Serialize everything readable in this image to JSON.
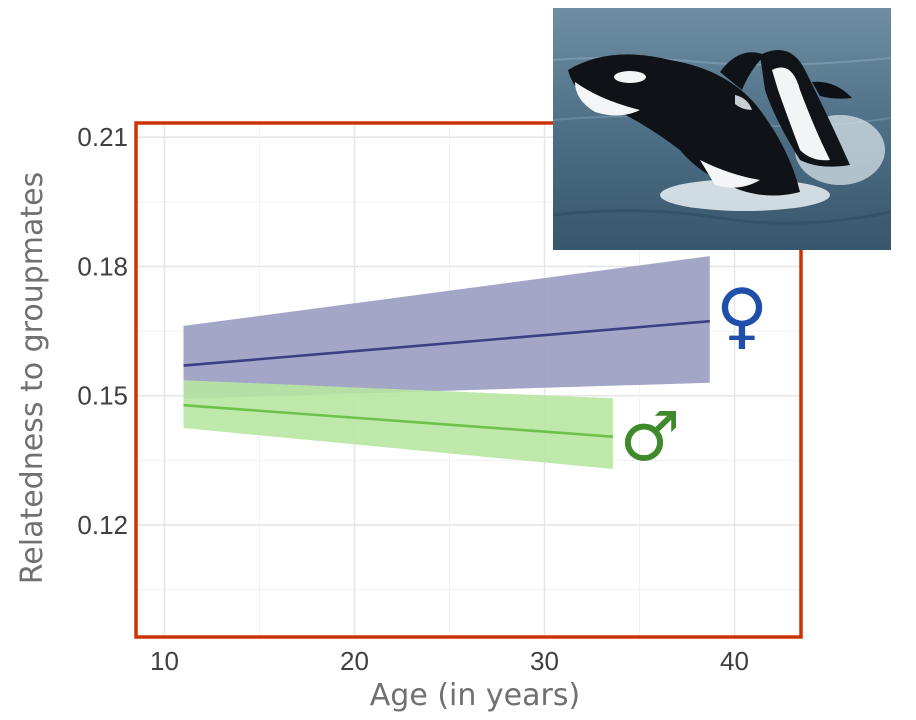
{
  "chart_data": {
    "type": "line",
    "title": "",
    "xlabel": "Age (in years)",
    "ylabel": "Relatedness to groupmates",
    "xlim": [
      8.5,
      43.5
    ],
    "ylim": [
      0.094,
      0.2133
    ],
    "xticks": [
      "10",
      "20",
      "30",
      "40"
    ],
    "xtick_values": [
      10,
      20,
      30,
      40
    ],
    "yticks": [
      "0.12",
      "0.15",
      "0.18",
      "0.21"
    ],
    "ytick_values": [
      0.12,
      0.15,
      0.18,
      0.21
    ],
    "grid": true,
    "series": [
      {
        "symbol": "♀",
        "color": "#3b3f84",
        "band_color": "#9a9cc2",
        "x": [
          11,
          38.7
        ],
        "y": [
          0.157,
          0.1673
        ],
        "lower": [
          0.1493,
          0.153
        ],
        "upper": [
          0.1662,
          0.1824
        ]
      },
      {
        "symbol": "♂",
        "color": "#6cc24a",
        "band_color": "#b8e5a2",
        "x": [
          11,
          33.6
        ],
        "y": [
          0.1478,
          0.1405
        ],
        "lower": [
          0.1425,
          0.133
        ],
        "upper": [
          0.1536,
          0.1494
        ]
      }
    ],
    "frame_color": "#cc3300"
  },
  "legend_symbols": {
    "female": {
      "symbol": "♀",
      "color": "#1f4fa8"
    },
    "male": {
      "symbol": "♂",
      "color": "#3f8a2a"
    }
  },
  "photo": {
    "icon": "orca-photo"
  }
}
